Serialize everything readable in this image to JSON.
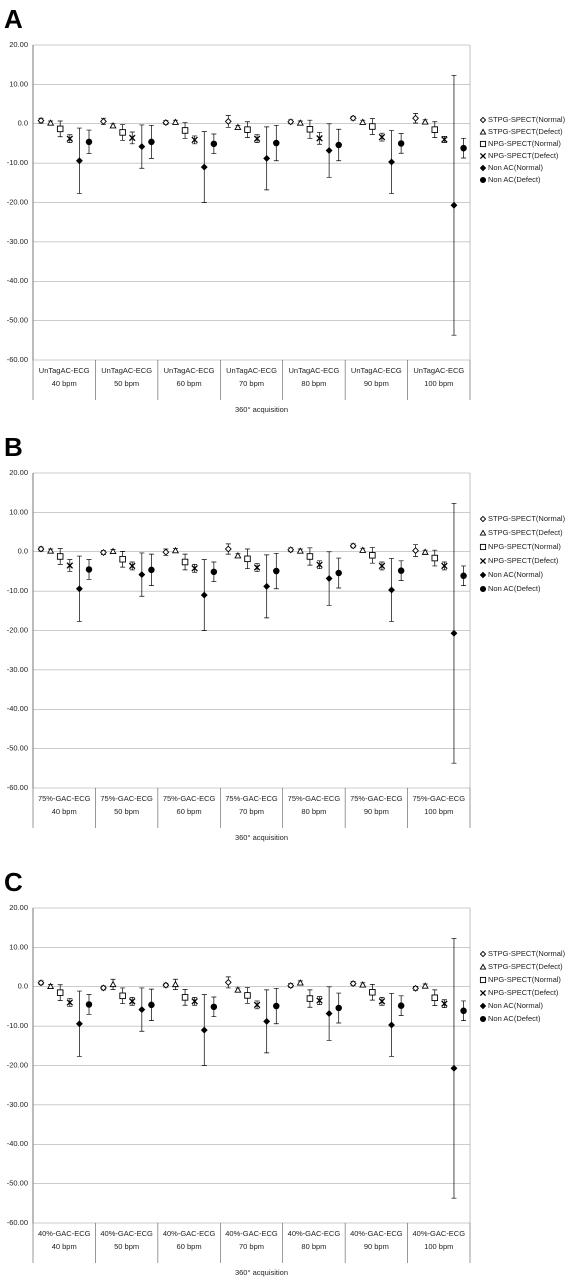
{
  "chart_data": [
    {
      "type": "errorbar",
      "panel_label": "A",
      "xlabel": "360° acquisition",
      "color": "#000000",
      "grid": true,
      "ylim": [
        -60,
        20
      ],
      "yticks": [
        {
          "value": 20,
          "label": "20.00"
        },
        {
          "value": 10,
          "label": "10.00"
        },
        {
          "value": 0,
          "label": "0.0"
        },
        {
          "value": -10,
          "label": "-10.00"
        },
        {
          "value": -20,
          "label": "-20.00"
        },
        {
          "value": -30,
          "label": "-30.00"
        },
        {
          "value": -40,
          "label": "-40.00"
        },
        {
          "value": -50,
          "label": "-50.00"
        },
        {
          "value": -60,
          "label": "-60.00"
        }
      ],
      "categories": [
        [
          "UnTagAC-ECG",
          "40 bpm"
        ],
        [
          "UnTagAC-ECG",
          "50 bpm"
        ],
        [
          "UnTagAC-ECG",
          "60 bpm"
        ],
        [
          "UnTagAC-ECG",
          "70 bpm"
        ],
        [
          "UnTagAC-ECG",
          "80 bpm"
        ],
        [
          "UnTagAC-ECG",
          "90 bpm"
        ],
        [
          "UnTagAC-ECG",
          "100 bpm"
        ]
      ],
      "series": [
        {
          "name": "STPG-SPECT(Normal)",
          "marker": "diamond-open",
          "values": [
            0.8,
            0.6,
            0.3,
            0.6,
            0.5,
            1.4,
            1.4
          ],
          "errors": [
            0.6,
            0.8,
            0.5,
            1.5,
            0.5,
            0.5,
            1.2
          ]
        },
        {
          "name": "STPG-SPECT(Defect)",
          "marker": "triangle-open",
          "values": [
            0.2,
            -0.5,
            0.4,
            -0.9,
            0.2,
            0.4,
            0.5
          ],
          "errors": [
            0.5,
            0.5,
            0.5,
            0.5,
            0.5,
            0.5,
            0.5
          ]
        },
        {
          "name": "NPG-SPECT(Normal)",
          "marker": "square-open",
          "values": [
            -1.3,
            -2.2,
            -1.7,
            -1.5,
            -1.4,
            -0.7,
            -1.5
          ],
          "errors": [
            2,
            2,
            2,
            2,
            2.3,
            2,
            2
          ]
        },
        {
          "name": "NPG-SPECT(Defect)",
          "marker": "x",
          "values": [
            -3.8,
            -3.6,
            -4.1,
            -3.8,
            -3.7,
            -3.4,
            -4
          ],
          "errors": [
            1,
            1.5,
            1,
            1,
            1.5,
            1,
            0.8
          ]
        },
        {
          "name": "Non AC(Normal)",
          "marker": "diamond",
          "values": [
            -9.4,
            -5.8,
            -11,
            -8.8,
            -6.8,
            -9.7,
            -20.7
          ],
          "errors": [
            8.3,
            5.5,
            9,
            8,
            6.8,
            8,
            33
          ]
        },
        {
          "name": "Non AC(Defect)",
          "marker": "circle",
          "values": [
            -4.6,
            -4.6,
            -5.1,
            -4.9,
            -5.4,
            -5,
            -6.2
          ],
          "errors": [
            3,
            4.2,
            2.5,
            4.5,
            4,
            2.5,
            2.5
          ]
        }
      ]
    },
    {
      "type": "errorbar",
      "panel_label": "B",
      "xlabel": "360° acquisition",
      "color": "#000000",
      "grid": true,
      "ylim": [
        -60,
        20
      ],
      "yticks": [
        {
          "value": 20,
          "label": "20.00"
        },
        {
          "value": 10,
          "label": "10.00"
        },
        {
          "value": 0,
          "label": "0.0"
        },
        {
          "value": -10,
          "label": "-10.00"
        },
        {
          "value": -20,
          "label": "-20.00"
        },
        {
          "value": -30,
          "label": "-30.00"
        },
        {
          "value": -40,
          "label": "-40.00"
        },
        {
          "value": -50,
          "label": "-50.00"
        },
        {
          "value": -60,
          "label": "-60.00"
        }
      ],
      "categories": [
        [
          "75%-GAC-ECG",
          "40 bpm"
        ],
        [
          "75%-GAC-ECG",
          "50 bpm"
        ],
        [
          "75%-GAC-ECG",
          "60 bpm"
        ],
        [
          "75%-GAC-ECG",
          "70 bpm"
        ],
        [
          "75%-GAC-ECG",
          "80 bpm"
        ],
        [
          "75%-GAC-ECG",
          "90 bpm"
        ],
        [
          "75%-GAC-ECG",
          "100  bpm"
        ]
      ],
      "series": [
        {
          "name": "STPG-SPECT(Normal)",
          "marker": "diamond-open",
          "values": [
            0.7,
            -0.2,
            -0.1,
            0.7,
            0.5,
            1.5,
            0.3
          ],
          "errors": [
            0.5,
            0.5,
            0.8,
            1.3,
            0.5,
            0.5,
            1.5
          ]
        },
        {
          "name": "STPG-SPECT(Defect)",
          "marker": "triangle-open",
          "values": [
            0.2,
            0.1,
            0.3,
            -1,
            0.2,
            0.4,
            -0.1
          ],
          "errors": [
            0.5,
            0.5,
            0.5,
            0.5,
            0.5,
            0.5,
            0.5
          ]
        },
        {
          "name": "NPG-SPECT(Normal)",
          "marker": "square-open",
          "values": [
            -1.2,
            -1.9,
            -2.6,
            -1.8,
            -1.2,
            -0.9,
            -1.6
          ],
          "errors": [
            2,
            2,
            2,
            2.5,
            2.2,
            2,
            2
          ]
        },
        {
          "name": "NPG-SPECT(Defect)",
          "marker": "x",
          "values": [
            -3.5,
            -3.6,
            -4.2,
            -4,
            -3.3,
            -3.6,
            -3.6
          ],
          "errors": [
            1.5,
            1,
            1,
            1,
            1,
            1,
            1
          ]
        },
        {
          "name": "Non AC(Normal)",
          "marker": "diamond",
          "values": [
            -9.4,
            -5.8,
            -11,
            -8.8,
            -6.8,
            -9.7,
            -20.7
          ],
          "errors": [
            8.3,
            5.5,
            9,
            8,
            6.8,
            8,
            33
          ]
        },
        {
          "name": "Non AC(Defect)",
          "marker": "circle",
          "values": [
            -4.5,
            -4.6,
            -5.1,
            -4.9,
            -5.4,
            -4.8,
            -6.1
          ],
          "errors": [
            2.5,
            4,
            2.5,
            4.5,
            3.8,
            2.5,
            2.5
          ]
        }
      ]
    },
    {
      "type": "errorbar",
      "panel_label": "C",
      "xlabel": "360° acquisition",
      "color": "#000000",
      "grid": true,
      "ylim": [
        -60,
        20
      ],
      "yticks": [
        {
          "value": 20,
          "label": "20.00"
        },
        {
          "value": 10,
          "label": "10.00"
        },
        {
          "value": 0,
          "label": "0.0"
        },
        {
          "value": -10,
          "label": "-10.00"
        },
        {
          "value": -20,
          "label": "-20.00"
        },
        {
          "value": -30,
          "label": "-30.00"
        },
        {
          "value": -40,
          "label": "-40.00"
        },
        {
          "value": -50,
          "label": "-50.00"
        },
        {
          "value": -60,
          "label": "-60.00"
        }
      ],
      "categories": [
        [
          "40%-GAC-ECG",
          "40 bpm"
        ],
        [
          "40%-GAC-ECG",
          "50 bpm"
        ],
        [
          "40%-GAC-ECG",
          "60 bpm"
        ],
        [
          "40%-GAC-ECG",
          "70 bpm"
        ],
        [
          "40%-GAC-ECG",
          "80 bpm"
        ],
        [
          "40%-GAC-ECG",
          "90 bpm"
        ],
        [
          "40%-GAC-ECG",
          "100  bpm"
        ]
      ],
      "series": [
        {
          "name": "STPG-SPECT(Normal)",
          "marker": "diamond-open",
          "values": [
            1,
            -0.3,
            0.4,
            1.1,
            0.3,
            0.8,
            -0.4
          ],
          "errors": [
            0.5,
            0.5,
            0.5,
            1.4,
            0.5,
            0.5,
            0.5
          ]
        },
        {
          "name": "STPG-SPECT(Defect)",
          "marker": "triangle-open",
          "values": [
            0.1,
            0.6,
            0.6,
            -0.8,
            1,
            0.5,
            0.2
          ],
          "errors": [
            0.5,
            1.3,
            1.3,
            0.5,
            0.5,
            0.5,
            0.5
          ]
        },
        {
          "name": "NPG-SPECT(Normal)",
          "marker": "square-open",
          "values": [
            -1.5,
            -2.3,
            -2.7,
            -2.2,
            -3,
            -1.4,
            -2.8
          ],
          "errors": [
            2,
            2,
            2,
            2,
            2.2,
            2,
            2
          ]
        },
        {
          "name": "NPG-SPECT(Defect)",
          "marker": "x",
          "values": [
            -4,
            -3.7,
            -3.7,
            -4.6,
            -3.5,
            -3.7,
            -4.3
          ],
          "errors": [
            1,
            1,
            1,
            1,
            1,
            1,
            1
          ]
        },
        {
          "name": "Non AC(Normal)",
          "marker": "diamond",
          "values": [
            -9.4,
            -5.8,
            -11,
            -8.8,
            -6.8,
            -9.7,
            -20.7
          ],
          "errors": [
            8.3,
            5.5,
            9,
            8,
            6.8,
            8,
            33
          ]
        },
        {
          "name": "Non AC(Defect)",
          "marker": "circle",
          "values": [
            -4.5,
            -4.6,
            -5.1,
            -4.9,
            -5.4,
            -4.8,
            -6.1
          ],
          "errors": [
            2.5,
            4,
            2.5,
            4.5,
            3.8,
            2.5,
            2.5
          ]
        }
      ]
    }
  ]
}
